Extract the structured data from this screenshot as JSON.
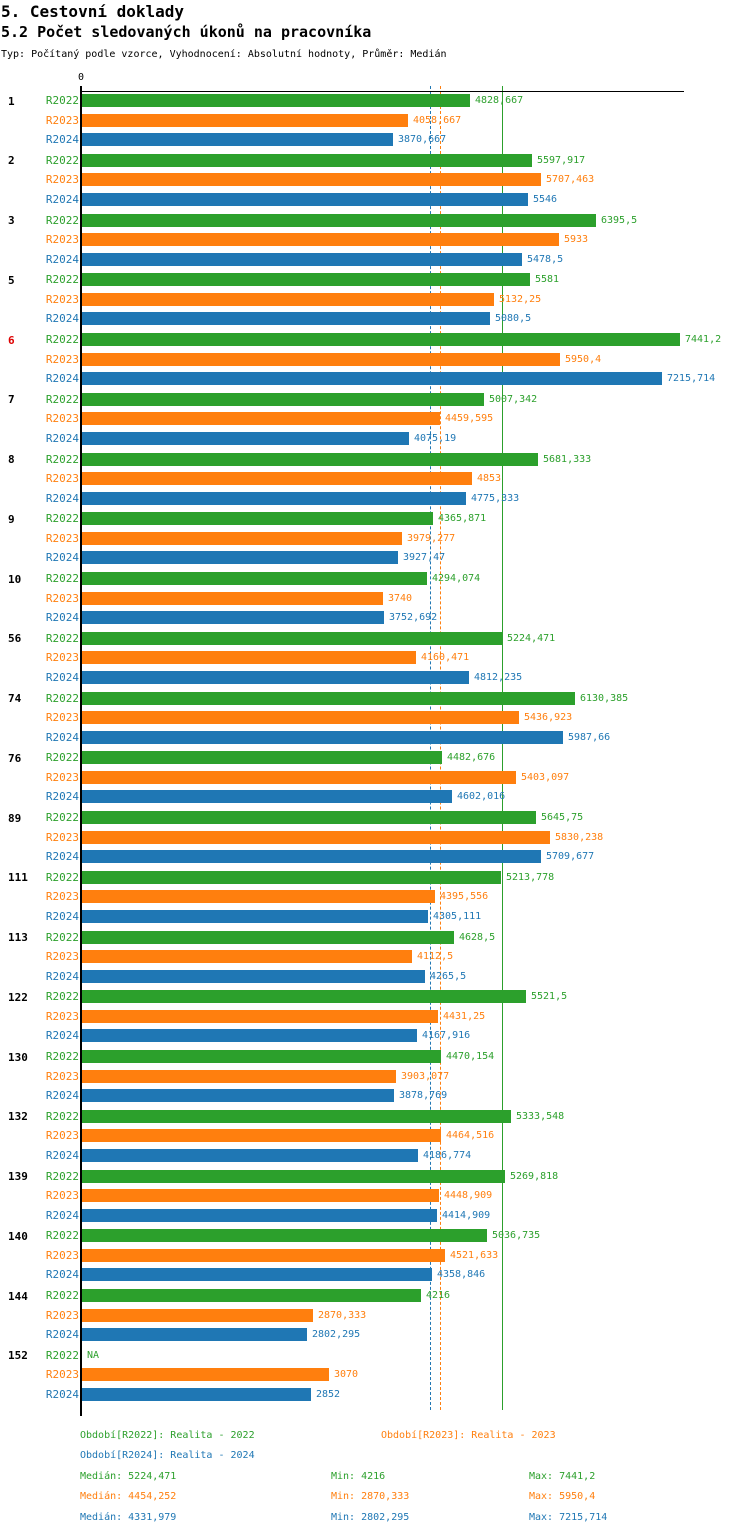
{
  "header": {
    "title": "5. Cestovní doklady",
    "subtitle": "5.2 Počet sledovaných úkonů na pracovníka",
    "meta": "Typ: Počítaný podle vzorce, Vyhodnocení: Absolutní hodnoty, Průměr: Medián"
  },
  "axis": {
    "zero_label": "0"
  },
  "colors": {
    "r2022": "#2ca02c",
    "r2023": "#ff7f0e",
    "r2024": "#1f77b4",
    "highlight": "#dd0000",
    "axis": "#000000"
  },
  "na_text": "NA",
  "chart_data": {
    "type": "bar",
    "orientation": "horizontal",
    "title": "5.2 Počet sledovaných úkonů na pracovníka",
    "xlabel": "",
    "ylabel": "",
    "xlim": [
      0,
      7500
    ],
    "x_tick_labels": [
      "0"
    ],
    "grid": false,
    "legend_position": "bottom",
    "categories": [
      "1",
      "2",
      "3",
      "5",
      "6",
      "7",
      "8",
      "9",
      "10",
      "56",
      "74",
      "76",
      "89",
      "111",
      "113",
      "122",
      "130",
      "132",
      "139",
      "140",
      "144",
      "152"
    ],
    "highlighted_categories": [
      "6"
    ],
    "series": [
      {
        "name": "R2022",
        "color": "#2ca02c",
        "period_label": "Období[R2022]: Realita - 2022",
        "values": [
          4828.667,
          5597.917,
          6395.5,
          5581,
          7441.2,
          5007.342,
          5681.333,
          4365.871,
          4294.074,
          5224.471,
          6130.385,
          4482.676,
          5645.75,
          5213.778,
          4628.5,
          5521.5,
          4470.154,
          5333.548,
          5269.818,
          5036.735,
          4216,
          null
        ],
        "labels": [
          "4828,667",
          "5597,917",
          "6395,5",
          "5581",
          "7441,2",
          "5007,342",
          "5681,333",
          "4365,871",
          "4294,074",
          "5224,471",
          "6130,385",
          "4482,676",
          "5645,75",
          "5213,778",
          "4628,5",
          "5521,5",
          "4470,154",
          "5333,548",
          "5269,818",
          "5036,735",
          "4216",
          "NA"
        ]
      },
      {
        "name": "R2023",
        "color": "#ff7f0e",
        "period_label": "Období[R2023]: Realita - 2023",
        "values": [
          4058.667,
          5707.463,
          5933,
          5132.25,
          5950.4,
          4459.595,
          4853,
          3979.277,
          3740,
          4160.471,
          5436.923,
          5403.097,
          5830.238,
          4395.556,
          4112.5,
          4431.25,
          3903.077,
          4464.516,
          4448.909,
          4521.633,
          2870.333,
          3070
        ],
        "labels": [
          "4058,667",
          "5707,463",
          "5933",
          "5132,25",
          "5950,4",
          "4459,595",
          "4853",
          "3979,277",
          "3740",
          "4160,471",
          "5436,923",
          "5403,097",
          "5830,238",
          "4395,556",
          "4112,5",
          "4431,25",
          "3903,077",
          "4464,516",
          "4448,909",
          "4521,633",
          "2870,333",
          "3070"
        ]
      },
      {
        "name": "R2024",
        "color": "#1f77b4",
        "period_label": "Období[R2024]: Realita - 2024",
        "values": [
          3870.667,
          5546,
          5478.5,
          5080.5,
          7215.714,
          4075.19,
          4775.333,
          3927.47,
          3752.692,
          4812.235,
          5987.66,
          4602.016,
          5709.677,
          4305.111,
          4265.5,
          4167.916,
          3878.769,
          4186.774,
          4414.909,
          4358.846,
          2802.295,
          2852
        ],
        "labels": [
          "3870,667",
          "5546",
          "5478,5",
          "5080,5",
          "7215,714",
          "4075,19",
          "4775,333",
          "3927,47",
          "3752,692",
          "4812,235",
          "5987,66",
          "4602,016",
          "5709,677",
          "4305,111",
          "4265,5",
          "4167,916",
          "3878,769",
          "4186,774",
          "4414,909",
          "4358,846",
          "2802,295",
          "2852"
        ]
      }
    ],
    "medians": {
      "R2022": 5224.471,
      "R2023": 4454.252,
      "R2024": 4331.979
    }
  },
  "footer": {
    "legend": [
      {
        "label": "Období[R2022]: Realita - 2022"
      },
      {
        "label": "Období[R2023]: Realita - 2023"
      },
      {
        "label": "Období[R2024]: Realita - 2024"
      }
    ],
    "stats": [
      {
        "median": "Medián: 5224,471",
        "min": "Min: 4216",
        "max": "Max: 7441,2"
      },
      {
        "median": "Medián: 4454,252",
        "min": "Min: 2870,333",
        "max": "Max: 5950,4"
      },
      {
        "median": "Medián: 4331,979",
        "min": "Min: 2802,295",
        "max": "Max: 7215,714"
      }
    ]
  }
}
